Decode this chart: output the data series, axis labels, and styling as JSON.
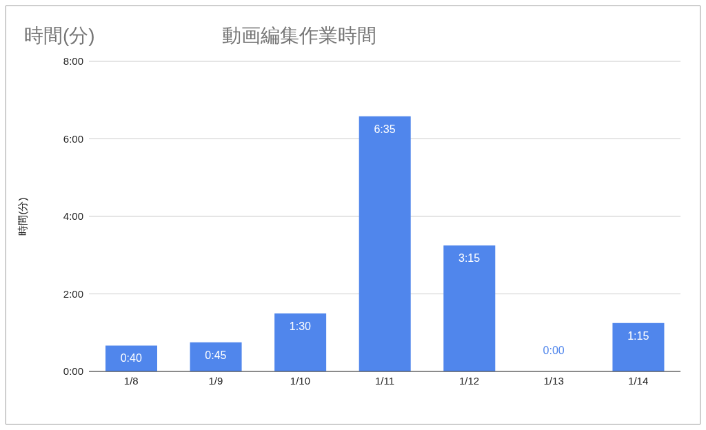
{
  "chart_data": {
    "type": "bar",
    "title": "動画編集作業時間",
    "annotations": [
      "時間(分)"
    ],
    "ylabel": "時間(分)",
    "categories": [
      "1/8",
      "1/9",
      "1/10",
      "1/11",
      "1/12",
      "1/13",
      "1/14"
    ],
    "values": [
      0.667,
      0.75,
      1.5,
      6.583,
      3.25,
      0,
      1.25
    ],
    "value_labels": [
      "0:40",
      "0:45",
      "1:30",
      "6:35",
      "3:15",
      "0:00",
      "1:15"
    ],
    "color": "#5086ec",
    "ylim": [
      0,
      8
    ],
    "yticks": [
      {
        "value": 0,
        "label": "0:00"
      },
      {
        "value": 2,
        "label": "2:00"
      },
      {
        "value": 4,
        "label": "4:00"
      },
      {
        "value": 6,
        "label": "6:00"
      },
      {
        "value": 8,
        "label": "8:00"
      }
    ],
    "grid": "y",
    "legend": false
  }
}
